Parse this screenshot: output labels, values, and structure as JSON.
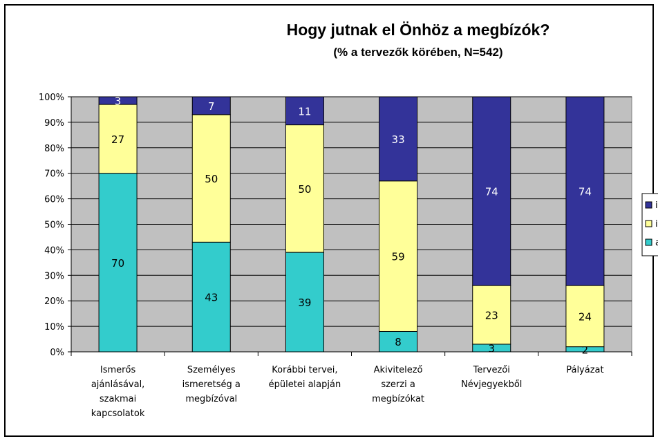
{
  "chart_data": {
    "type": "bar",
    "stacked": true,
    "percent": true,
    "title": "Hogy jutnak el Önhöz a megbízók?",
    "subtitle": "(% a tervezők körében, N=542)",
    "categories": [
      [
        "Ismerős",
        "ajánlásával,",
        "szakmai",
        "kapcsolatok"
      ],
      [
        "Személyes",
        "ismeretség a",
        "megbízóval"
      ],
      [
        "Korábbi tervei,",
        "épületei alapján"
      ],
      [
        "Akivitelező",
        "szerzi a",
        "megbízókat"
      ],
      [
        "Tervezői",
        "Névjegyekből"
      ],
      [
        "Pályázat"
      ]
    ],
    "series": [
      {
        "values": [
          70,
          43,
          39,
          8,
          3,
          2
        ],
        "color": "#33CCCC"
      },
      {
        "values": [
          27,
          50,
          50,
          59,
          23,
          24
        ],
        "color": "#FFFF99"
      },
      {
        "values": [
          3,
          7,
          11,
          33,
          74,
          74
        ],
        "color": "#333399"
      }
    ],
    "legend_labels": [
      "i",
      "i",
      "a"
    ],
    "yticks": [
      "0%",
      "10%",
      "20%",
      "30%",
      "40%",
      "50%",
      "60%",
      "70%",
      "80%",
      "90%",
      "100%"
    ],
    "ylim": [
      0,
      100
    ],
    "grid": true,
    "plot_background": "#C0C0C0",
    "legend": "right (cropped)"
  }
}
